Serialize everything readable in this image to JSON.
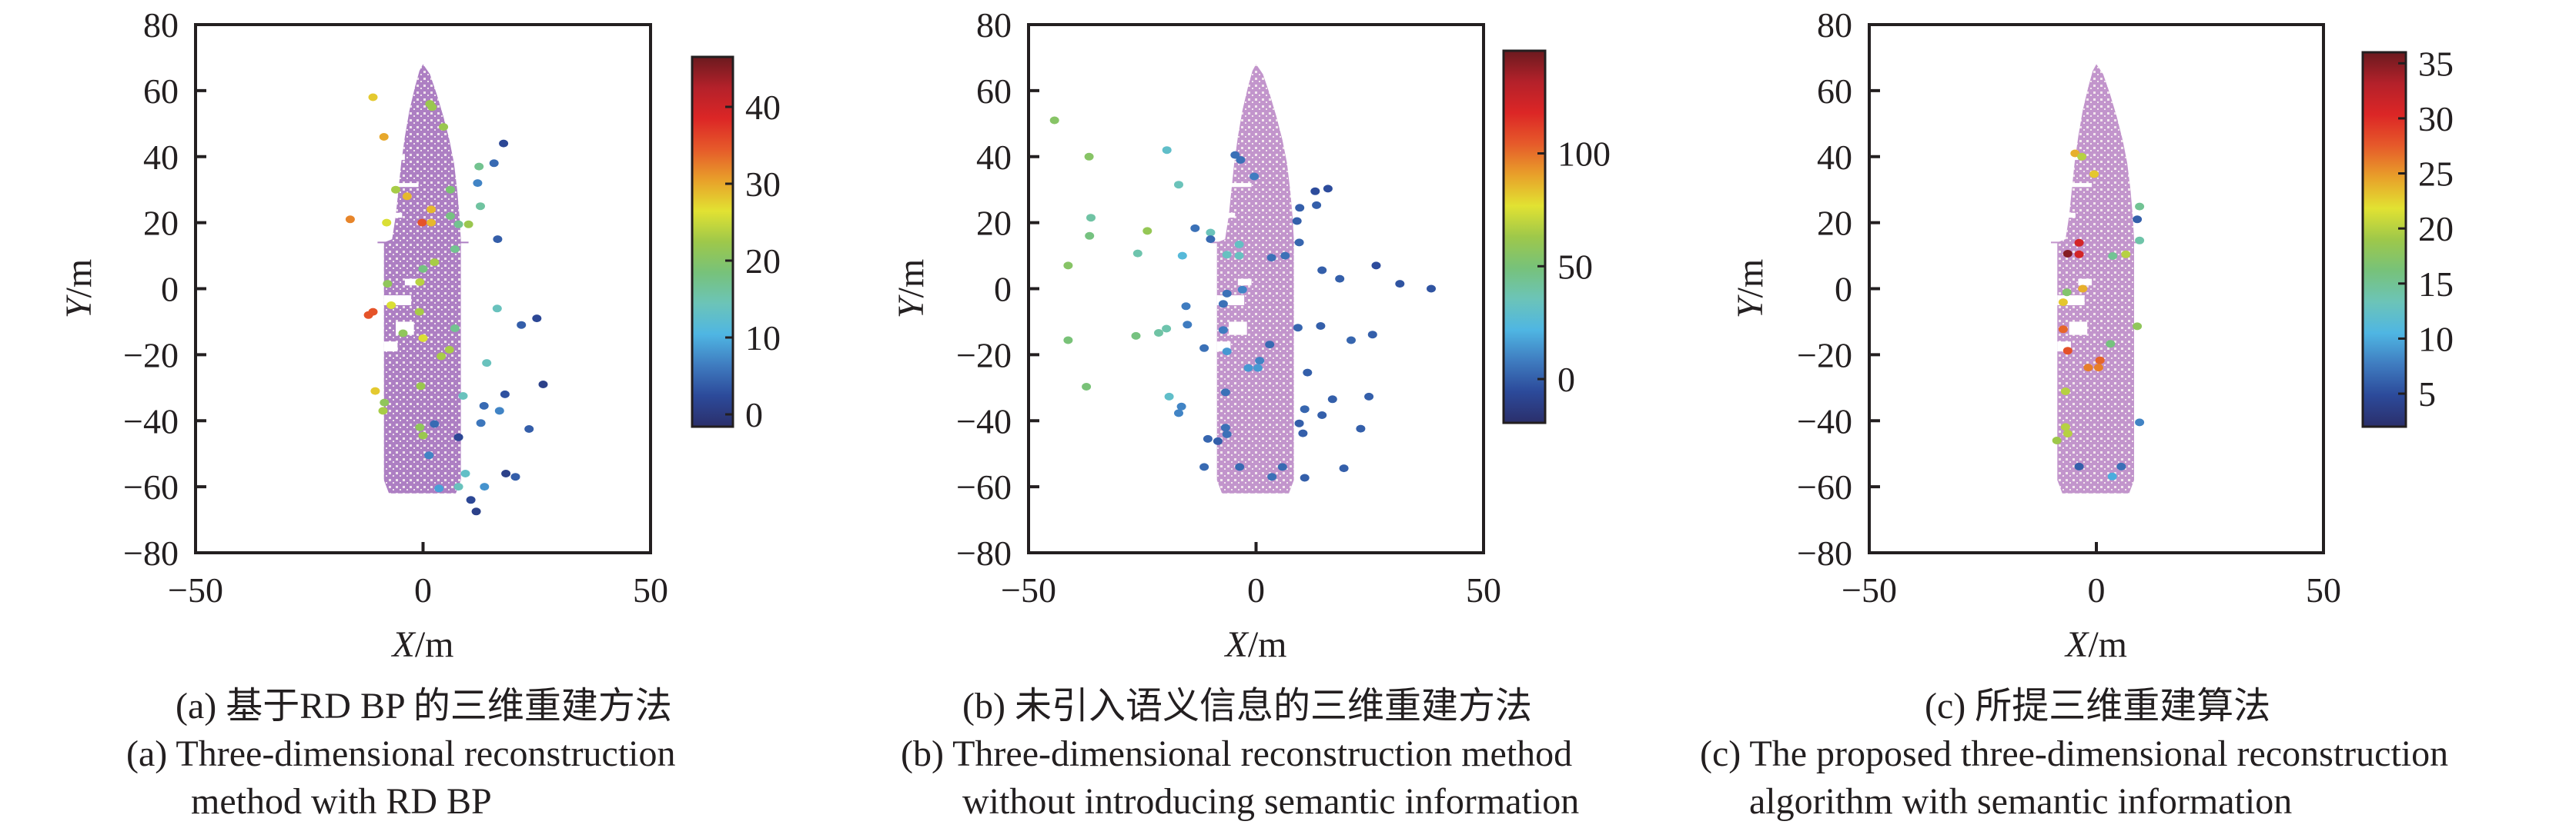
{
  "figure": {
    "background": "#ffffff",
    "axis_color": "#231f20",
    "colormap": [
      "#2b2f6b",
      "#2c4a9a",
      "#3f7cc0",
      "#4fb6e3",
      "#6cc4b8",
      "#77c27a",
      "#9ec84a",
      "#e2e232",
      "#e8a02a",
      "#e65a2a",
      "#dc2626",
      "#b4212a",
      "#6b1a1f"
    ]
  },
  "chart_data": [
    {
      "id": "a",
      "type": "scatter",
      "xlabel_var": "X",
      "xlabel_unit": "/m",
      "ylabel_var": "Y",
      "ylabel_unit": "/m",
      "xlim": [
        -50,
        50
      ],
      "ylim": [
        -80,
        80
      ],
      "xticks": [
        "−50",
        "0",
        "50"
      ],
      "xtick_values": [
        -50,
        0,
        50
      ],
      "yticks": [
        "80",
        "60",
        "40",
        "20",
        "0",
        "−20",
        "−40",
        "−60",
        "−80"
      ],
      "ytick_values": [
        80,
        60,
        40,
        20,
        0,
        -20,
        -40,
        -60,
        -80
      ],
      "grid": false,
      "ship_color": "#ad7fc3",
      "colorbar": {
        "range": [
          -1.6,
          46.5
        ],
        "ticks": [
          "0",
          "10",
          "20",
          "30",
          "40"
        ],
        "tick_values": [
          0,
          10,
          20,
          30,
          40
        ]
      },
      "points": [
        [
          -11,
          58,
          28
        ],
        [
          1.5,
          56,
          22
        ],
        [
          2,
          55,
          22
        ],
        [
          -8.6,
          46,
          30
        ],
        [
          4.5,
          49,
          22
        ],
        [
          17.7,
          44,
          2
        ],
        [
          15.6,
          38,
          5
        ],
        [
          12.3,
          37,
          17
        ],
        [
          12,
          32,
          7
        ],
        [
          -6,
          30,
          23
        ],
        [
          -3.5,
          28,
          29
        ],
        [
          6,
          30,
          19
        ],
        [
          1.8,
          24,
          29
        ],
        [
          12.6,
          25,
          16
        ],
        [
          -16,
          21,
          32
        ],
        [
          -8,
          20,
          26
        ],
        [
          -0.2,
          20,
          35
        ],
        [
          1.8,
          20,
          29
        ],
        [
          6,
          22,
          18
        ],
        [
          7.8,
          19.5,
          17
        ],
        [
          10,
          19.5,
          22
        ],
        [
          16.4,
          15,
          4
        ],
        [
          7,
          12,
          17
        ],
        [
          2.5,
          8,
          23
        ],
        [
          0,
          6,
          18
        ],
        [
          -7.8,
          1.5,
          21
        ],
        [
          -0.7,
          2,
          24
        ],
        [
          -12,
          -8,
          35
        ],
        [
          -11,
          -7,
          35
        ],
        [
          -7,
          -5,
          26
        ],
        [
          -0.8,
          -7,
          23
        ],
        [
          16.3,
          -6,
          14
        ],
        [
          25,
          -9,
          2
        ],
        [
          21.6,
          -11,
          4
        ],
        [
          -4.4,
          -13.5,
          21
        ],
        [
          0,
          -15,
          26
        ],
        [
          7,
          -12,
          17
        ],
        [
          5.8,
          -18.5,
          23
        ],
        [
          4,
          -20.5,
          23
        ],
        [
          14,
          -22.5,
          14
        ],
        [
          26.4,
          -29,
          1
        ],
        [
          -10.5,
          -31,
          28
        ],
        [
          -8.5,
          -34.5,
          21
        ],
        [
          -8.8,
          -37,
          23
        ],
        [
          -0.5,
          -29.5,
          22
        ],
        [
          8.8,
          -32.5,
          14
        ],
        [
          18,
          -32,
          3
        ],
        [
          13.4,
          -35.5,
          5
        ],
        [
          16.8,
          -37,
          7
        ],
        [
          12.7,
          -40.7,
          6
        ],
        [
          2.5,
          -41,
          5
        ],
        [
          -0.7,
          -42,
          21
        ],
        [
          0,
          -44.5,
          22
        ],
        [
          7.8,
          -45,
          2
        ],
        [
          23.3,
          -42.5,
          4
        ],
        [
          1.3,
          -50.5,
          7
        ],
        [
          18.2,
          -56,
          1
        ],
        [
          20.3,
          -57,
          4
        ],
        [
          9.3,
          -56,
          13
        ],
        [
          7.8,
          -60,
          14
        ],
        [
          13.5,
          -60,
          8
        ],
        [
          3.5,
          -60.5,
          9
        ],
        [
          10.5,
          -64,
          2
        ],
        [
          11.7,
          -67.5,
          1
        ]
      ]
    },
    {
      "id": "b",
      "type": "scatter",
      "xlabel_var": "X",
      "xlabel_unit": "/m",
      "ylabel_var": "Y",
      "ylabel_unit": "/m",
      "xlim": [
        -50,
        50
      ],
      "ylim": [
        -80,
        80
      ],
      "xticks": [
        "−50",
        "0",
        "50"
      ],
      "xtick_values": [
        -50,
        0,
        50
      ],
      "yticks": [
        "80",
        "60",
        "40",
        "20",
        "0",
        "−20",
        "−40",
        "−60",
        "−80"
      ],
      "ytick_values": [
        80,
        60,
        40,
        20,
        0,
        -20,
        -40,
        -60,
        -80
      ],
      "grid": false,
      "ship_color": "#c295cc",
      "colorbar": {
        "range": [
          -19.4,
          145.5
        ],
        "ticks": [
          "0",
          "50",
          "100"
        ],
        "tick_values": [
          0,
          50,
          100
        ]
      },
      "points": [
        [
          -44.3,
          51,
          55
        ],
        [
          -36.7,
          40,
          55
        ],
        [
          -19.6,
          42,
          30
        ],
        [
          -4.6,
          40.5,
          5
        ],
        [
          -3.4,
          39,
          5
        ],
        [
          -0.4,
          34,
          8
        ],
        [
          -17,
          31.5,
          35
        ],
        [
          13,
          29.5,
          -5
        ],
        [
          15.8,
          30.3,
          -5
        ],
        [
          9.6,
          24.5,
          0
        ],
        [
          13.3,
          25.3,
          0
        ],
        [
          9,
          20.5,
          0
        ],
        [
          -36.3,
          21.5,
          40
        ],
        [
          -36.6,
          16,
          48
        ],
        [
          -23.9,
          17.5,
          60
        ],
        [
          -13.4,
          18.3,
          5
        ],
        [
          -10,
          17,
          35
        ],
        [
          -10,
          15,
          3
        ],
        [
          9.5,
          14,
          2
        ],
        [
          -3.7,
          13.4,
          32
        ],
        [
          -26,
          10.7,
          38
        ],
        [
          -16.2,
          10,
          25
        ],
        [
          -6.4,
          10.3,
          33
        ],
        [
          -3.7,
          10,
          33
        ],
        [
          3.4,
          9.4,
          5
        ],
        [
          6.4,
          10,
          5
        ],
        [
          26.4,
          7,
          -5
        ],
        [
          14.5,
          5.6,
          0
        ],
        [
          18.4,
          3,
          0
        ],
        [
          31.6,
          1.5,
          -3
        ],
        [
          38.5,
          0,
          -3
        ],
        [
          -41.3,
          7,
          55
        ],
        [
          -3,
          -0.3,
          10
        ],
        [
          -6.4,
          -1.5,
          5
        ],
        [
          -15.4,
          -5.3,
          8
        ],
        [
          -7.2,
          -4.6,
          5
        ],
        [
          -15.1,
          -10.9,
          8
        ],
        [
          9.2,
          -11.8,
          2
        ],
        [
          14.2,
          -11.3,
          0
        ],
        [
          25.6,
          -13.9,
          0
        ],
        [
          20.9,
          -15.6,
          2
        ],
        [
          -41.3,
          -15.6,
          50
        ],
        [
          -26.4,
          -14.3,
          48
        ],
        [
          -21.4,
          -13.4,
          40
        ],
        [
          -19.7,
          -12.1,
          38
        ],
        [
          -7.2,
          -12.5,
          8
        ],
        [
          3,
          -16.9,
          3
        ],
        [
          -11.4,
          -18,
          5
        ],
        [
          -6.4,
          -19,
          15
        ],
        [
          0.8,
          -21.8,
          10
        ],
        [
          -1.7,
          -24,
          15
        ],
        [
          0.4,
          -24,
          15
        ],
        [
          11.3,
          -25.4,
          0
        ],
        [
          -37.3,
          -29.7,
          50
        ],
        [
          -19.1,
          -32.7,
          30
        ],
        [
          -6.7,
          -31.4,
          5
        ],
        [
          24.8,
          -32.7,
          0
        ],
        [
          16.8,
          -33.5,
          0
        ],
        [
          -16.4,
          -35.7,
          10
        ],
        [
          -17,
          -37.7,
          10
        ],
        [
          10.7,
          -36.5,
          2
        ],
        [
          14.5,
          -38.3,
          0
        ],
        [
          9.5,
          -40.8,
          0
        ],
        [
          -6.7,
          -42.1,
          5
        ],
        [
          23,
          -42.4,
          0
        ],
        [
          -6.4,
          -44.1,
          5
        ],
        [
          10.3,
          -43.8,
          0
        ],
        [
          -10.6,
          -45.5,
          2
        ],
        [
          -8.4,
          -46.2,
          0
        ],
        [
          -11.4,
          -54,
          3
        ],
        [
          -3.6,
          -54,
          3
        ],
        [
          5.8,
          -54,
          3
        ],
        [
          19.3,
          -54.4,
          0
        ],
        [
          3.5,
          -57,
          5
        ],
        [
          10.7,
          -57.3,
          0
        ]
      ]
    },
    {
      "id": "c",
      "type": "scatter",
      "xlabel_var": "X",
      "xlabel_unit": "/m",
      "ylabel_var": "Y",
      "ylabel_unit": "/m",
      "xlim": [
        -50,
        50
      ],
      "ylim": [
        -80,
        80
      ],
      "xticks": [
        "−50",
        "0",
        "50"
      ],
      "xtick_values": [
        -50,
        0,
        50
      ],
      "yticks": [
        "80",
        "60",
        "40",
        "20",
        "0",
        "−20",
        "−40",
        "−60",
        "−80"
      ],
      "ytick_values": [
        80,
        60,
        40,
        20,
        0,
        -20,
        -40,
        -60,
        -80
      ],
      "grid": false,
      "ship_color": "#c295cc",
      "colorbar": {
        "range": [
          2,
          36
        ],
        "ticks": [
          "5",
          "10",
          "15",
          "20",
          "25",
          "30",
          "35"
        ],
        "tick_values": [
          5,
          10,
          15,
          20,
          25,
          30,
          35
        ]
      },
      "points": [
        [
          -4.7,
          41,
          24
        ],
        [
          -3.2,
          40,
          20
        ],
        [
          -0.5,
          34.7,
          23
        ],
        [
          9.5,
          24.9,
          15
        ],
        [
          9,
          21,
          6
        ],
        [
          9.5,
          14.6,
          14
        ],
        [
          -3.8,
          13.9,
          31
        ],
        [
          -6.3,
          10.6,
          35
        ],
        [
          -3.8,
          10.4,
          31
        ],
        [
          3.6,
          9.9,
          15
        ],
        [
          6.5,
          10.4,
          20
        ],
        [
          -3,
          0,
          24
        ],
        [
          -6.5,
          -1.1,
          17
        ],
        [
          -7.3,
          -4.1,
          23
        ],
        [
          9,
          -11.4,
          18
        ],
        [
          -7.3,
          -12.3,
          27
        ],
        [
          3.1,
          -16.7,
          16
        ],
        [
          -6.3,
          -18.8,
          28
        ],
        [
          0.8,
          -21.7,
          27
        ],
        [
          -1.8,
          -23.9,
          26
        ],
        [
          0.5,
          -23.9,
          26
        ],
        [
          -6.8,
          -31.1,
          20
        ],
        [
          9.5,
          -40.5,
          8
        ],
        [
          -6.8,
          -41.9,
          20
        ],
        [
          -6.3,
          -43.9,
          20
        ],
        [
          -8.7,
          -46,
          19
        ],
        [
          -3.8,
          -53.9,
          6
        ],
        [
          5.5,
          -53.9,
          7
        ],
        [
          3.5,
          -56.9,
          10
        ]
      ]
    }
  ],
  "ship_outline": [
    [
      0,
      68
    ],
    [
      1.5,
      65
    ],
    [
      3,
      59
    ],
    [
      4.5,
      52
    ],
    [
      5.8,
      45
    ],
    [
      6.8,
      38
    ],
    [
      7.5,
      30
    ],
    [
      8,
      22
    ],
    [
      8.3,
      15
    ],
    [
      8.3,
      -58
    ],
    [
      7.2,
      -62
    ],
    [
      -7.5,
      -62
    ],
    [
      -8.6,
      -58
    ],
    [
      -8.6,
      14
    ],
    [
      -6.8,
      15
    ],
    [
      -6,
      22
    ],
    [
      -5.4,
      30
    ],
    [
      -4.8,
      38
    ],
    [
      -4,
      46
    ],
    [
      -3,
      54
    ],
    [
      -1.8,
      61
    ],
    [
      -0.8,
      66
    ]
  ],
  "ship_gaps": [
    [
      -8,
      40.5,
      4,
      1.5
    ],
    [
      -6,
      32,
      5,
      1.2
    ],
    [
      -8.6,
      23,
      4,
      1.5
    ],
    [
      -8.6,
      -2,
      6,
      3
    ],
    [
      -6,
      -10,
      4,
      4
    ],
    [
      -8.6,
      -16,
      3,
      3
    ],
    [
      -4,
      3,
      3,
      2
    ]
  ],
  "captions": [
    {
      "zh": "(a) 基于RD BP 的三维重建方法",
      "en1": "(a) Three-dimensional reconstruction",
      "en2": "method with RD BP"
    },
    {
      "zh": "(b) 未引入语义信息的三维重建方法",
      "en1": "(b) Three-dimensional reconstruction method",
      "en2": "without introducing semantic information"
    },
    {
      "zh": "(c) 所提三维重建算法",
      "en1": "(c) The proposed three-dimensional reconstruction",
      "en2": "algorithm with semantic information"
    }
  ]
}
